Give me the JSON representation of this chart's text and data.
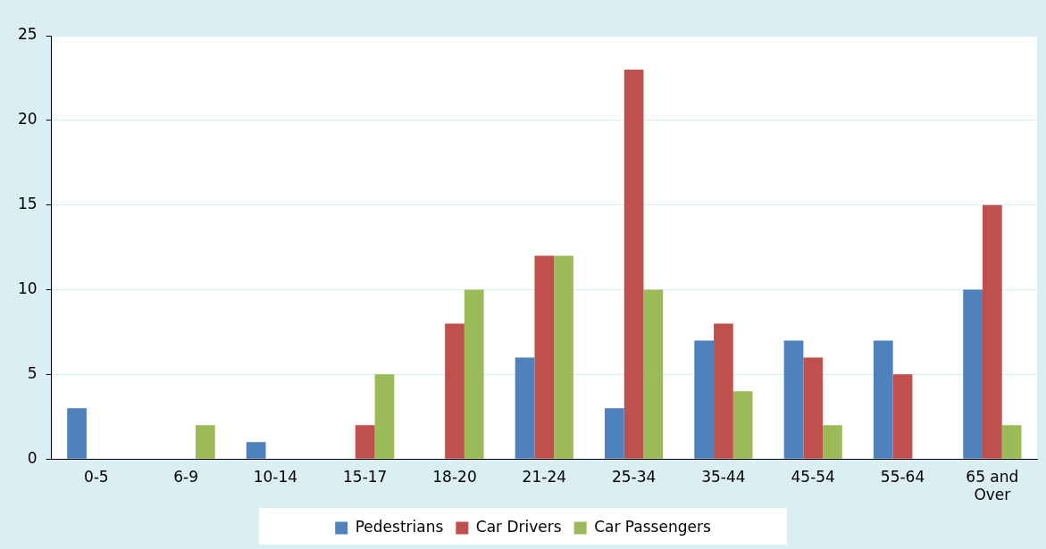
{
  "chart_data": {
    "type": "bar",
    "categories": [
      "0-5",
      "6-9",
      "10-14",
      "15-17",
      "18-20",
      "21-24",
      "25-34",
      "35-44",
      "45-54",
      "55-64",
      "65 and Over"
    ],
    "series": [
      {
        "name": "Pedestrians",
        "color": "#4f81bd",
        "values": [
          3,
          0,
          1,
          0,
          0,
          6,
          3,
          7,
          7,
          7,
          10
        ]
      },
      {
        "name": "Car Drivers",
        "color": "#c0504d",
        "values": [
          0,
          0,
          0,
          2,
          8,
          12,
          23,
          8,
          6,
          5,
          15
        ]
      },
      {
        "name": "Car Passengers",
        "color": "#9bbb59",
        "values": [
          0,
          2,
          0,
          5,
          10,
          12,
          10,
          4,
          2,
          0,
          2
        ]
      }
    ],
    "ylim": [
      0,
      25
    ],
    "yticks": [
      0,
      5,
      10,
      15,
      20,
      25
    ],
    "grid": "y",
    "legend": "bottom"
  }
}
